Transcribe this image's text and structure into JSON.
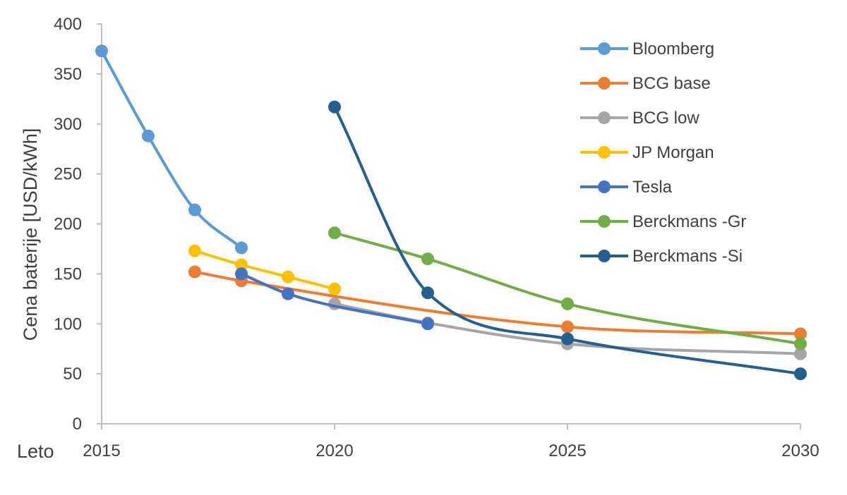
{
  "chart_data": {
    "type": "line",
    "title": "",
    "xlabel": "Leto",
    "ylabel": "Cena baterije [USD/kWh]",
    "xlim": [
      2015,
      2030
    ],
    "ylim": [
      0,
      400
    ],
    "x_ticks": [
      "2015",
      "2020",
      "2025",
      "2030"
    ],
    "y_ticks": [
      "0",
      "50",
      "100",
      "150",
      "200",
      "250",
      "300",
      "350",
      "400"
    ],
    "grid": false,
    "legend_position": "top-right",
    "series": [
      {
        "name": "Bloomberg",
        "color": "#5B9BD5",
        "points": [
          [
            2015,
            373
          ],
          [
            2016,
            288
          ],
          [
            2017,
            214
          ],
          [
            2018,
            176
          ]
        ]
      },
      {
        "name": "BCG base",
        "color": "#ED7D31",
        "points": [
          [
            2017,
            152
          ],
          [
            2018,
            143
          ],
          [
            2025,
            97
          ],
          [
            2030,
            90
          ]
        ]
      },
      {
        "name": "BCG low",
        "color": "#A5A5A5",
        "points": [
          [
            2020,
            120
          ],
          [
            2022,
            101
          ],
          [
            2025,
            80
          ],
          [
            2030,
            70
          ]
        ]
      },
      {
        "name": "JP Morgan",
        "color": "#FFC000",
        "points": [
          [
            2017,
            173
          ],
          [
            2018,
            159
          ],
          [
            2019,
            147
          ],
          [
            2020,
            135
          ]
        ]
      },
      {
        "name": "Tesla",
        "color": "#4472C4",
        "points": [
          [
            2018,
            150
          ],
          [
            2019,
            130
          ],
          [
            2022,
            100
          ]
        ]
      },
      {
        "name": "Berckmans -Gr",
        "color": "#70AD47",
        "points": [
          [
            2020,
            191
          ],
          [
            2022,
            165
          ],
          [
            2025,
            120
          ],
          [
            2030,
            80
          ]
        ]
      },
      {
        "name": "Berckmans -Si",
        "color": "#255E91",
        "points": [
          [
            2020,
            317
          ],
          [
            2022,
            131
          ],
          [
            2025,
            85
          ],
          [
            2030,
            50
          ]
        ]
      }
    ]
  }
}
